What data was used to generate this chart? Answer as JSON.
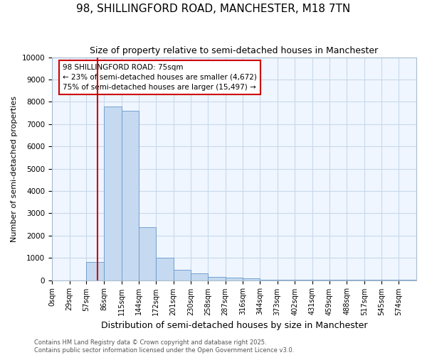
{
  "title": "98, SHILLINGFORD ROAD, MANCHESTER, M18 7TN",
  "subtitle": "Size of property relative to semi-detached houses in Manchester",
  "xlabel": "Distribution of semi-detached houses by size in Manchester",
  "ylabel": "Number of semi-detached properties",
  "footnote1": "Contains HM Land Registry data © Crown copyright and database right 2025.",
  "footnote2": "Contains public sector information licensed under the Open Government Licence v3.0.",
  "annotation_line1": "98 SHILLINGFORD ROAD: 75sqm",
  "annotation_line2": "← 23% of semi-detached houses are smaller (4,672)",
  "annotation_line3": "75% of semi-detached houses are larger (15,497) →",
  "property_size": 75,
  "bin_edges": [
    0,
    29,
    57,
    86,
    115,
    144,
    172,
    201,
    230,
    258,
    287,
    316,
    344,
    373,
    402,
    431,
    459,
    488,
    517,
    545,
    574,
    603
  ],
  "bar_values": [
    0,
    0,
    800,
    7780,
    7610,
    2380,
    1020,
    460,
    290,
    130,
    100,
    70,
    30,
    20,
    5,
    5,
    5,
    5,
    5,
    5,
    5
  ],
  "tick_labels": [
    "0sqm",
    "29sqm",
    "57sqm",
    "86sqm",
    "115sqm",
    "144sqm",
    "172sqm",
    "201sqm",
    "230sqm",
    "258sqm",
    "287sqm",
    "316sqm",
    "344sqm",
    "373sqm",
    "402sqm",
    "431sqm",
    "459sqm",
    "488sqm",
    "517sqm",
    "545sqm",
    "574sqm"
  ],
  "bar_color": "#c5d9f0",
  "bar_edge_color": "#6699cc",
  "vline_color": "#cc0000",
  "annotation_box_edgecolor": "#cc0000",
  "grid_color": "#c8d8ea",
  "background_color": "#ffffff",
  "plot_bg_color": "#f0f6ff",
  "ylim": [
    0,
    10000
  ],
  "yticks": [
    0,
    1000,
    2000,
    3000,
    4000,
    5000,
    6000,
    7000,
    8000,
    9000,
    10000
  ],
  "title_fontsize": 11,
  "subtitle_fontsize": 9,
  "tick_fontsize": 7,
  "ylabel_fontsize": 8,
  "xlabel_fontsize": 9,
  "annotation_fontsize": 7.5,
  "footnote_fontsize": 6
}
